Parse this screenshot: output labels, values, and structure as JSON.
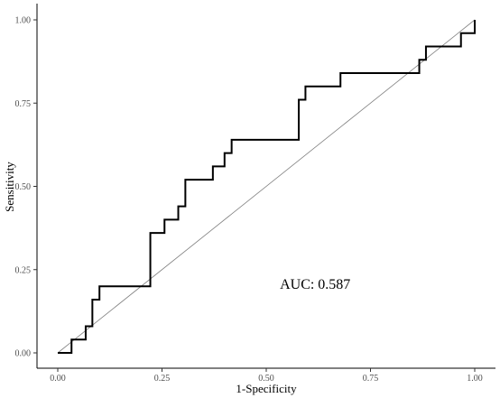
{
  "chart_data": {
    "type": "line",
    "title": "",
    "xlabel": "1-Specificity",
    "ylabel": "Sensitivity",
    "xlim": [
      0,
      1
    ],
    "ylim": [
      0,
      1
    ],
    "xticks": [
      0.0,
      0.25,
      0.5,
      0.75,
      1.0
    ],
    "yticks": [
      0.0,
      0.25,
      0.5,
      0.75,
      1.0
    ],
    "xtick_labels": [
      "0.00",
      "0.25",
      "0.50",
      "0.75",
      "1.00"
    ],
    "ytick_labels": [
      "0.00",
      "0.25",
      "0.50",
      "0.75",
      "1.00"
    ],
    "grid": false,
    "annotation": {
      "text": "AUC: 0.587",
      "x": 0.6,
      "y": 0.2
    },
    "reference_line": {
      "x": [
        0,
        1
      ],
      "y": [
        0,
        1
      ],
      "color": "#7f7f7f"
    },
    "series": [
      {
        "color": "#000000",
        "x": [
          0.0,
          0.033,
          0.033,
          0.067,
          0.067,
          0.083,
          0.083,
          0.1,
          0.1,
          0.222,
          0.222,
          0.256,
          0.256,
          0.289,
          0.289,
          0.306,
          0.306,
          0.372,
          0.372,
          0.4,
          0.4,
          0.417,
          0.417,
          0.578,
          0.578,
          0.594,
          0.594,
          0.678,
          0.678,
          0.867,
          0.867,
          0.883,
          0.883,
          0.967,
          0.967,
          1.0,
          1.0
        ],
        "y": [
          0.0,
          0.0,
          0.04,
          0.04,
          0.08,
          0.08,
          0.16,
          0.16,
          0.2,
          0.2,
          0.36,
          0.36,
          0.4,
          0.4,
          0.44,
          0.44,
          0.52,
          0.52,
          0.56,
          0.56,
          0.6,
          0.6,
          0.64,
          0.64,
          0.76,
          0.76,
          0.8,
          0.8,
          0.84,
          0.84,
          0.88,
          0.88,
          0.92,
          0.92,
          0.96,
          0.96,
          1.0
        ]
      }
    ]
  }
}
